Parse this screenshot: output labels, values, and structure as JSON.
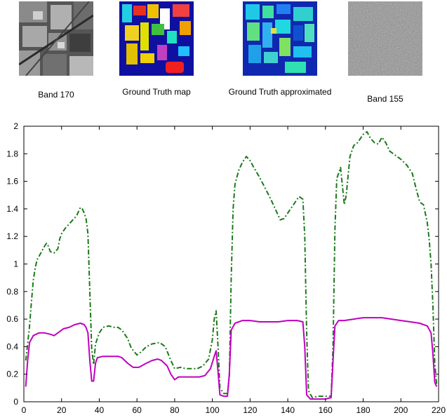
{
  "figure": {
    "images": [
      {
        "caption": "Band 170",
        "icon": "grayscale-satellite-band-image"
      },
      {
        "caption": "Ground Truth map",
        "icon": "classification-map-image"
      },
      {
        "caption": "Ground Truth approximated",
        "icon": "approximated-map-image"
      },
      {
        "caption": "Band 155",
        "icon": "noise-band-image"
      }
    ]
  },
  "chart_data": {
    "type": "line",
    "title": "",
    "xlabel": "",
    "ylabel": "",
    "xlim": [
      0,
      220
    ],
    "ylim": [
      0,
      2
    ],
    "xticks": [
      0,
      20,
      40,
      60,
      80,
      100,
      120,
      140,
      160,
      180,
      200,
      220
    ],
    "yticks": [
      0,
      0.2,
      0.4,
      0.6,
      0.8,
      1,
      1.2,
      1.4,
      1.6,
      1.8,
      2
    ],
    "grid": false,
    "legend": "none",
    "series": [
      {
        "style": "dash-dot",
        "color": "#1a7a1a",
        "points": [
          [
            1,
            0.3
          ],
          [
            2,
            0.42
          ],
          [
            3,
            0.55
          ],
          [
            4,
            0.72
          ],
          [
            5,
            0.88
          ],
          [
            6,
            0.97
          ],
          [
            7,
            1.03
          ],
          [
            9,
            1.08
          ],
          [
            11,
            1.13
          ],
          [
            12,
            1.15
          ],
          [
            13,
            1.13
          ],
          [
            14,
            1.09
          ],
          [
            16,
            1.08
          ],
          [
            18,
            1.11
          ],
          [
            19,
            1.18
          ],
          [
            20,
            1.22
          ],
          [
            22,
            1.26
          ],
          [
            24,
            1.29
          ],
          [
            26,
            1.32
          ],
          [
            28,
            1.35
          ],
          [
            29,
            1.38
          ],
          [
            30,
            1.41
          ],
          [
            31,
            1.4
          ],
          [
            32,
            1.37
          ],
          [
            33,
            1.33
          ],
          [
            34,
            1.22
          ],
          [
            35,
            0.8
          ],
          [
            36,
            0.38
          ],
          [
            37,
            0.27
          ],
          [
            38,
            0.42
          ],
          [
            40,
            0.5
          ],
          [
            42,
            0.54
          ],
          [
            45,
            0.55
          ],
          [
            48,
            0.54
          ],
          [
            50,
            0.54
          ],
          [
            52,
            0.52
          ],
          [
            55,
            0.46
          ],
          [
            57,
            0.39
          ],
          [
            60,
            0.34
          ],
          [
            62,
            0.36
          ],
          [
            65,
            0.4
          ],
          [
            68,
            0.42
          ],
          [
            72,
            0.43
          ],
          [
            75,
            0.4
          ],
          [
            78,
            0.3
          ],
          [
            80,
            0.24
          ],
          [
            83,
            0.25
          ],
          [
            86,
            0.24
          ],
          [
            89,
            0.24
          ],
          [
            92,
            0.24
          ],
          [
            95,
            0.26
          ],
          [
            98,
            0.31
          ],
          [
            100,
            0.45
          ],
          [
            101,
            0.6
          ],
          [
            102,
            0.66
          ],
          [
            103,
            0.4
          ],
          [
            104,
            0.1
          ],
          [
            106,
            0.06
          ],
          [
            108,
            0.06
          ],
          [
            109,
            0.18
          ],
          [
            110,
            0.9
          ],
          [
            111,
            1.4
          ],
          [
            112,
            1.58
          ],
          [
            114,
            1.68
          ],
          [
            116,
            1.74
          ],
          [
            118,
            1.78
          ],
          [
            120,
            1.75
          ],
          [
            122,
            1.7
          ],
          [
            125,
            1.63
          ],
          [
            128,
            1.55
          ],
          [
            131,
            1.47
          ],
          [
            134,
            1.38
          ],
          [
            136,
            1.32
          ],
          [
            138,
            1.33
          ],
          [
            140,
            1.37
          ],
          [
            142,
            1.41
          ],
          [
            144,
            1.45
          ],
          [
            146,
            1.49
          ],
          [
            148,
            1.47
          ],
          [
            149,
            1.2
          ],
          [
            150,
            0.5
          ],
          [
            151,
            0.08
          ],
          [
            153,
            0.03
          ],
          [
            156,
            0.04
          ],
          [
            160,
            0.04
          ],
          [
            163,
            0.04
          ],
          [
            164,
            0.4
          ],
          [
            165,
            1.25
          ],
          [
            166,
            1.62
          ],
          [
            168,
            1.7
          ],
          [
            170,
            1.43
          ],
          [
            171,
            1.5
          ],
          [
            173,
            1.78
          ],
          [
            175,
            1.86
          ],
          [
            177,
            1.88
          ],
          [
            180,
            1.94
          ],
          [
            182,
            1.96
          ],
          [
            184,
            1.91
          ],
          [
            186,
            1.88
          ],
          [
            188,
            1.87
          ],
          [
            190,
            1.92
          ],
          [
            192,
            1.88
          ],
          [
            194,
            1.82
          ],
          [
            197,
            1.79
          ],
          [
            200,
            1.76
          ],
          [
            203,
            1.72
          ],
          [
            206,
            1.66
          ],
          [
            208,
            1.55
          ],
          [
            210,
            1.45
          ],
          [
            212,
            1.43
          ],
          [
            214,
            1.3
          ],
          [
            215,
            1.18
          ],
          [
            216,
            1.0
          ],
          [
            217,
            0.7
          ],
          [
            218,
            0.28
          ],
          [
            219,
            0.12
          ]
        ]
      },
      {
        "style": "solid",
        "color": "#c000c0",
        "points": [
          [
            1,
            0.11
          ],
          [
            2,
            0.3
          ],
          [
            3,
            0.43
          ],
          [
            5,
            0.48
          ],
          [
            8,
            0.5
          ],
          [
            11,
            0.5
          ],
          [
            14,
            0.49
          ],
          [
            16,
            0.48
          ],
          [
            18,
            0.5
          ],
          [
            21,
            0.53
          ],
          [
            24,
            0.54
          ],
          [
            27,
            0.56
          ],
          [
            30,
            0.57
          ],
          [
            32,
            0.56
          ],
          [
            33,
            0.54
          ],
          [
            34,
            0.5
          ],
          [
            35,
            0.3
          ],
          [
            36,
            0.15
          ],
          [
            37,
            0.15
          ],
          [
            38,
            0.28
          ],
          [
            39,
            0.32
          ],
          [
            42,
            0.33
          ],
          [
            46,
            0.33
          ],
          [
            50,
            0.33
          ],
          [
            52,
            0.32
          ],
          [
            55,
            0.28
          ],
          [
            58,
            0.25
          ],
          [
            61,
            0.25
          ],
          [
            65,
            0.28
          ],
          [
            68,
            0.3
          ],
          [
            71,
            0.31
          ],
          [
            73,
            0.3
          ],
          [
            76,
            0.26
          ],
          [
            78,
            0.2
          ],
          [
            80,
            0.16
          ],
          [
            82,
            0.18
          ],
          [
            86,
            0.18
          ],
          [
            90,
            0.18
          ],
          [
            93,
            0.18
          ],
          [
            96,
            0.19
          ],
          [
            99,
            0.24
          ],
          [
            101,
            0.33
          ],
          [
            102,
            0.37
          ],
          [
            103,
            0.22
          ],
          [
            104,
            0.05
          ],
          [
            106,
            0.04
          ],
          [
            108,
            0.04
          ],
          [
            109,
            0.2
          ],
          [
            110,
            0.52
          ],
          [
            112,
            0.57
          ],
          [
            116,
            0.59
          ],
          [
            120,
            0.59
          ],
          [
            125,
            0.58
          ],
          [
            130,
            0.58
          ],
          [
            135,
            0.58
          ],
          [
            140,
            0.59
          ],
          [
            145,
            0.59
          ],
          [
            148,
            0.58
          ],
          [
            149,
            0.4
          ],
          [
            150,
            0.05
          ],
          [
            152,
            0.02
          ],
          [
            156,
            0.02
          ],
          [
            160,
            0.02
          ],
          [
            163,
            0.03
          ],
          [
            164,
            0.3
          ],
          [
            165,
            0.55
          ],
          [
            167,
            0.59
          ],
          [
            170,
            0.59
          ],
          [
            175,
            0.6
          ],
          [
            180,
            0.61
          ],
          [
            185,
            0.61
          ],
          [
            190,
            0.61
          ],
          [
            195,
            0.6
          ],
          [
            200,
            0.59
          ],
          [
            205,
            0.58
          ],
          [
            210,
            0.57
          ],
          [
            214,
            0.55
          ],
          [
            216,
            0.5
          ],
          [
            217,
            0.35
          ],
          [
            218,
            0.14
          ],
          [
            219,
            0.11
          ]
        ]
      }
    ]
  }
}
